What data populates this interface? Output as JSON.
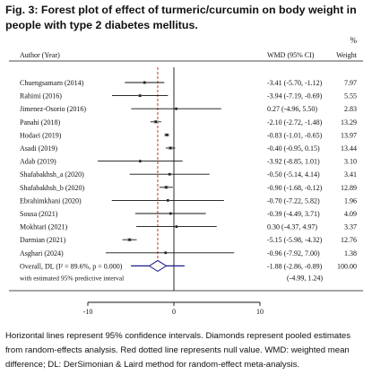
{
  "figure": {
    "title": "Fig. 3: Forest plot of effect of turmeric/curcumin on body weight in people with type 2 diabetes mellitus.",
    "caption": "Horizontal lines represent 95% confidence intervals. Diamonds represent pooled estimates from random-effects analysis. Red dotted line represents null value. WMD: weighted mean difference; DL: DerSimonian & Laird method for random-effect meta-analysis."
  },
  "chart_data": {
    "type": "forest",
    "headers": {
      "author": "Author (Year)",
      "effect": "WMD (95% CI)",
      "weight_pct": "%",
      "weight": "Weight"
    },
    "xlim": [
      -10,
      10
    ],
    "ticks": [
      -10,
      0,
      10
    ],
    "null_value": 0,
    "studies": [
      {
        "author": "Chuengsamarn (2014)",
        "est": -3.41,
        "lo": -5.7,
        "hi": -1.12,
        "ci_text": "-3.41 (-5.70, -1.12)",
        "weight": "7.97"
      },
      {
        "author": "Rahimi (2016)",
        "est": -3.94,
        "lo": -7.19,
        "hi": -0.69,
        "ci_text": "-3.94 (-7.19, -0.69)",
        "weight": "5.55"
      },
      {
        "author": "Jimenez-Osorio (2016)",
        "est": 0.27,
        "lo": -4.96,
        "hi": 5.5,
        "ci_text": "0.27 (-4.96, 5.50)",
        "weight": "2.83"
      },
      {
        "author": "Panahi (2018)",
        "est": -2.1,
        "lo": -2.72,
        "hi": -1.48,
        "ci_text": "-2.10 (-2.72, -1.48)",
        "weight": "13.29"
      },
      {
        "author": "Hodaei (2019)",
        "est": -0.83,
        "lo": -1.01,
        "hi": -0.65,
        "ci_text": "-0.83 (-1.01, -0.65)",
        "weight": "13.97"
      },
      {
        "author": "Asadi (2019)",
        "est": -0.4,
        "lo": -0.95,
        "hi": 0.15,
        "ci_text": "-0.40 (-0.95, 0.15)",
        "weight": "13.44"
      },
      {
        "author": "Adab (2019)",
        "est": -3.92,
        "lo": -8.85,
        "hi": 1.01,
        "ci_text": "-3.92 (-8.85, 1.01)",
        "weight": "3.10"
      },
      {
        "author": "Shafabakhsh_a (2020)",
        "est": -0.5,
        "lo": -5.14,
        "hi": 4.14,
        "ci_text": "-0.50 (-5.14, 4.14)",
        "weight": "3.41"
      },
      {
        "author": "Shafabakhsh_b (2020)",
        "est": -0.9,
        "lo": -1.68,
        "hi": -0.12,
        "ci_text": "-0.90 (-1.68, -0.12)",
        "weight": "12.89"
      },
      {
        "author": "Ebrahimkhani (2020)",
        "est": -0.7,
        "lo": -7.22,
        "hi": 5.82,
        "ci_text": "-0.70 (-7.22, 5.82)",
        "weight": "1.96"
      },
      {
        "author": "Sousa (2021)",
        "est": -0.39,
        "lo": -4.49,
        "hi": 3.71,
        "ci_text": "-0.39 (-4.49, 3.71)",
        "weight": "4.09"
      },
      {
        "author": "Mokhtari (2021)",
        "est": 0.3,
        "lo": -4.37,
        "hi": 4.97,
        "ci_text": "0.30 (-4.37, 4.97)",
        "weight": "3.37"
      },
      {
        "author": "Darmian (2021)",
        "est": -5.15,
        "lo": -5.98,
        "hi": -4.32,
        "ci_text": "-5.15 (-5.98, -4.32)",
        "weight": "12.76"
      },
      {
        "author": "Asghari (2024)",
        "est": -0.96,
        "lo": -7.92,
        "hi": 7.0,
        "ci_text": "-0.96 (-7.92, 7.00)",
        "weight": "1.38"
      }
    ],
    "overall": {
      "label": "Overall, DL (I² = 89.6%, p = 0.000)",
      "est": -1.88,
      "lo": -2.86,
      "hi": -0.89,
      "ci_text": "-1.88 (-2.86, -0.89)",
      "weight": "100.00",
      "pi_label": "with estimated 95% predictive interval",
      "pi_text": "(-4.99, 1.24)",
      "pi_lo": -4.99,
      "pi_hi": 1.24
    },
    "colors": {
      "null_line": "#c0392b",
      "diamond": "#1a1a8c",
      "marker": "#222222",
      "ci_line": "#111111"
    }
  }
}
